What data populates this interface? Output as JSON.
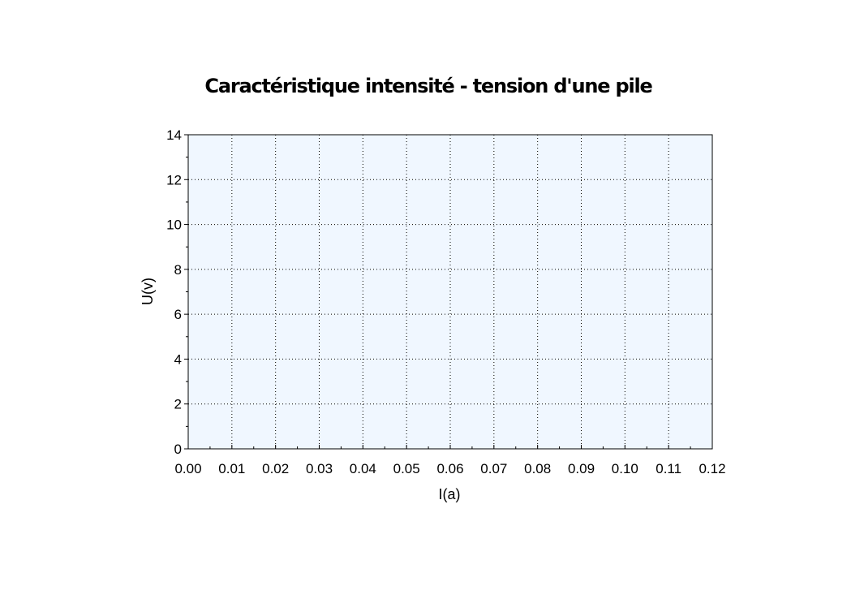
{
  "chart_data": {
    "type": "scatter",
    "title": "Caractéristique intensité - tension d'une pile",
    "xlabel": "I(a)",
    "ylabel": "U(v)",
    "xlim": [
      0,
      0.12
    ],
    "ylim": [
      0,
      14
    ],
    "x_ticks": [
      "0.00",
      "0.01",
      "0.02",
      "0.03",
      "0.04",
      "0.05",
      "0.06",
      "0.07",
      "0.08",
      "0.09",
      "0.10",
      "0.11",
      "0.12"
    ],
    "y_ticks": [
      "0",
      "2",
      "4",
      "6",
      "8",
      "10",
      "12",
      "14"
    ],
    "grid": true,
    "series": [],
    "plot_background": "#f0f7ff"
  }
}
